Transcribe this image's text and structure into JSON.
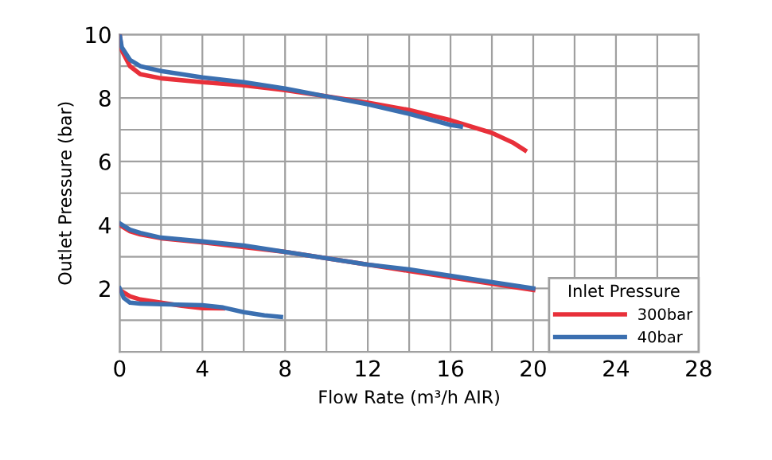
{
  "chart_data": {
    "type": "line",
    "xlabel": "Flow Rate (m³/h AIR)",
    "ylabel": "Outlet Pressure (bar)",
    "legend_title": "Inlet Pressure",
    "xlim": [
      0,
      28
    ],
    "ylim": [
      0,
      10
    ],
    "xticks": [
      0,
      {
        "value": 2,
        "label": null
      },
      4,
      {
        "value": 6,
        "label": null
      },
      8,
      {
        "value": 10,
        "label": null
      },
      12,
      {
        "value": 14,
        "label": null
      },
      16,
      {
        "value": 18,
        "label": null
      },
      20,
      {
        "value": 22,
        "label": null
      },
      24,
      {
        "value": 26,
        "label": null
      },
      28
    ],
    "yticks": [
      {
        "value": 0,
        "label": null
      },
      {
        "value": 1,
        "label": null
      },
      2,
      {
        "value": 3,
        "label": null
      },
      4,
      {
        "value": 5,
        "label": null
      },
      6,
      {
        "value": 7,
        "label": null
      },
      8,
      {
        "value": 9,
        "label": null
      },
      10
    ],
    "grid": true,
    "legend": "bottom right",
    "marker": "none",
    "line_style": "solid",
    "series": [
      {
        "name": "300bar",
        "color": "#e8303a",
        "x": [
          0,
          0.1,
          0.5,
          1,
          2,
          4,
          6,
          8,
          10,
          12,
          14,
          16,
          18,
          19,
          19.6
        ],
        "values": [
          10,
          9.5,
          9.0,
          8.75,
          8.62,
          8.5,
          8.4,
          8.25,
          8.05,
          7.85,
          7.62,
          7.3,
          6.9,
          6.6,
          6.35
        ]
      },
      {
        "name": "40bar",
        "color": "#3b6fb0",
        "x": [
          0,
          0.1,
          0.5,
          1,
          2,
          4,
          6,
          8,
          10,
          12,
          14,
          16,
          16.5
        ],
        "values": [
          10,
          9.6,
          9.2,
          9.0,
          8.85,
          8.65,
          8.5,
          8.3,
          8.05,
          7.8,
          7.5,
          7.15,
          7.1
        ]
      },
      {
        "color": "#e8303a",
        "x": [
          0,
          0.5,
          1,
          2,
          4,
          6,
          8,
          10,
          12,
          14,
          16,
          18,
          20
        ],
        "values": [
          4,
          3.8,
          3.7,
          3.58,
          3.45,
          3.3,
          3.15,
          2.95,
          2.75,
          2.55,
          2.35,
          2.15,
          1.95
        ]
      },
      {
        "color": "#3b6fb0",
        "x": [
          0,
          0.5,
          1,
          2,
          4,
          6,
          8,
          10,
          12,
          14,
          16,
          18,
          20
        ],
        "values": [
          4.05,
          3.85,
          3.75,
          3.6,
          3.48,
          3.35,
          3.15,
          2.95,
          2.75,
          2.6,
          2.4,
          2.2,
          2.0
        ]
      },
      {
        "color": "#e8303a",
        "x": [
          0,
          0.5,
          1,
          2,
          3,
          4,
          5
        ],
        "values": [
          1.95,
          1.75,
          1.65,
          1.55,
          1.45,
          1.38,
          1.37
        ]
      },
      {
        "color": "#3b6fb0",
        "x": [
          0,
          0.2,
          0.5,
          1,
          2,
          4,
          5,
          6,
          7,
          7.8
        ],
        "values": [
          2.0,
          1.7,
          1.55,
          1.52,
          1.5,
          1.47,
          1.4,
          1.25,
          1.15,
          1.1
        ]
      }
    ]
  }
}
